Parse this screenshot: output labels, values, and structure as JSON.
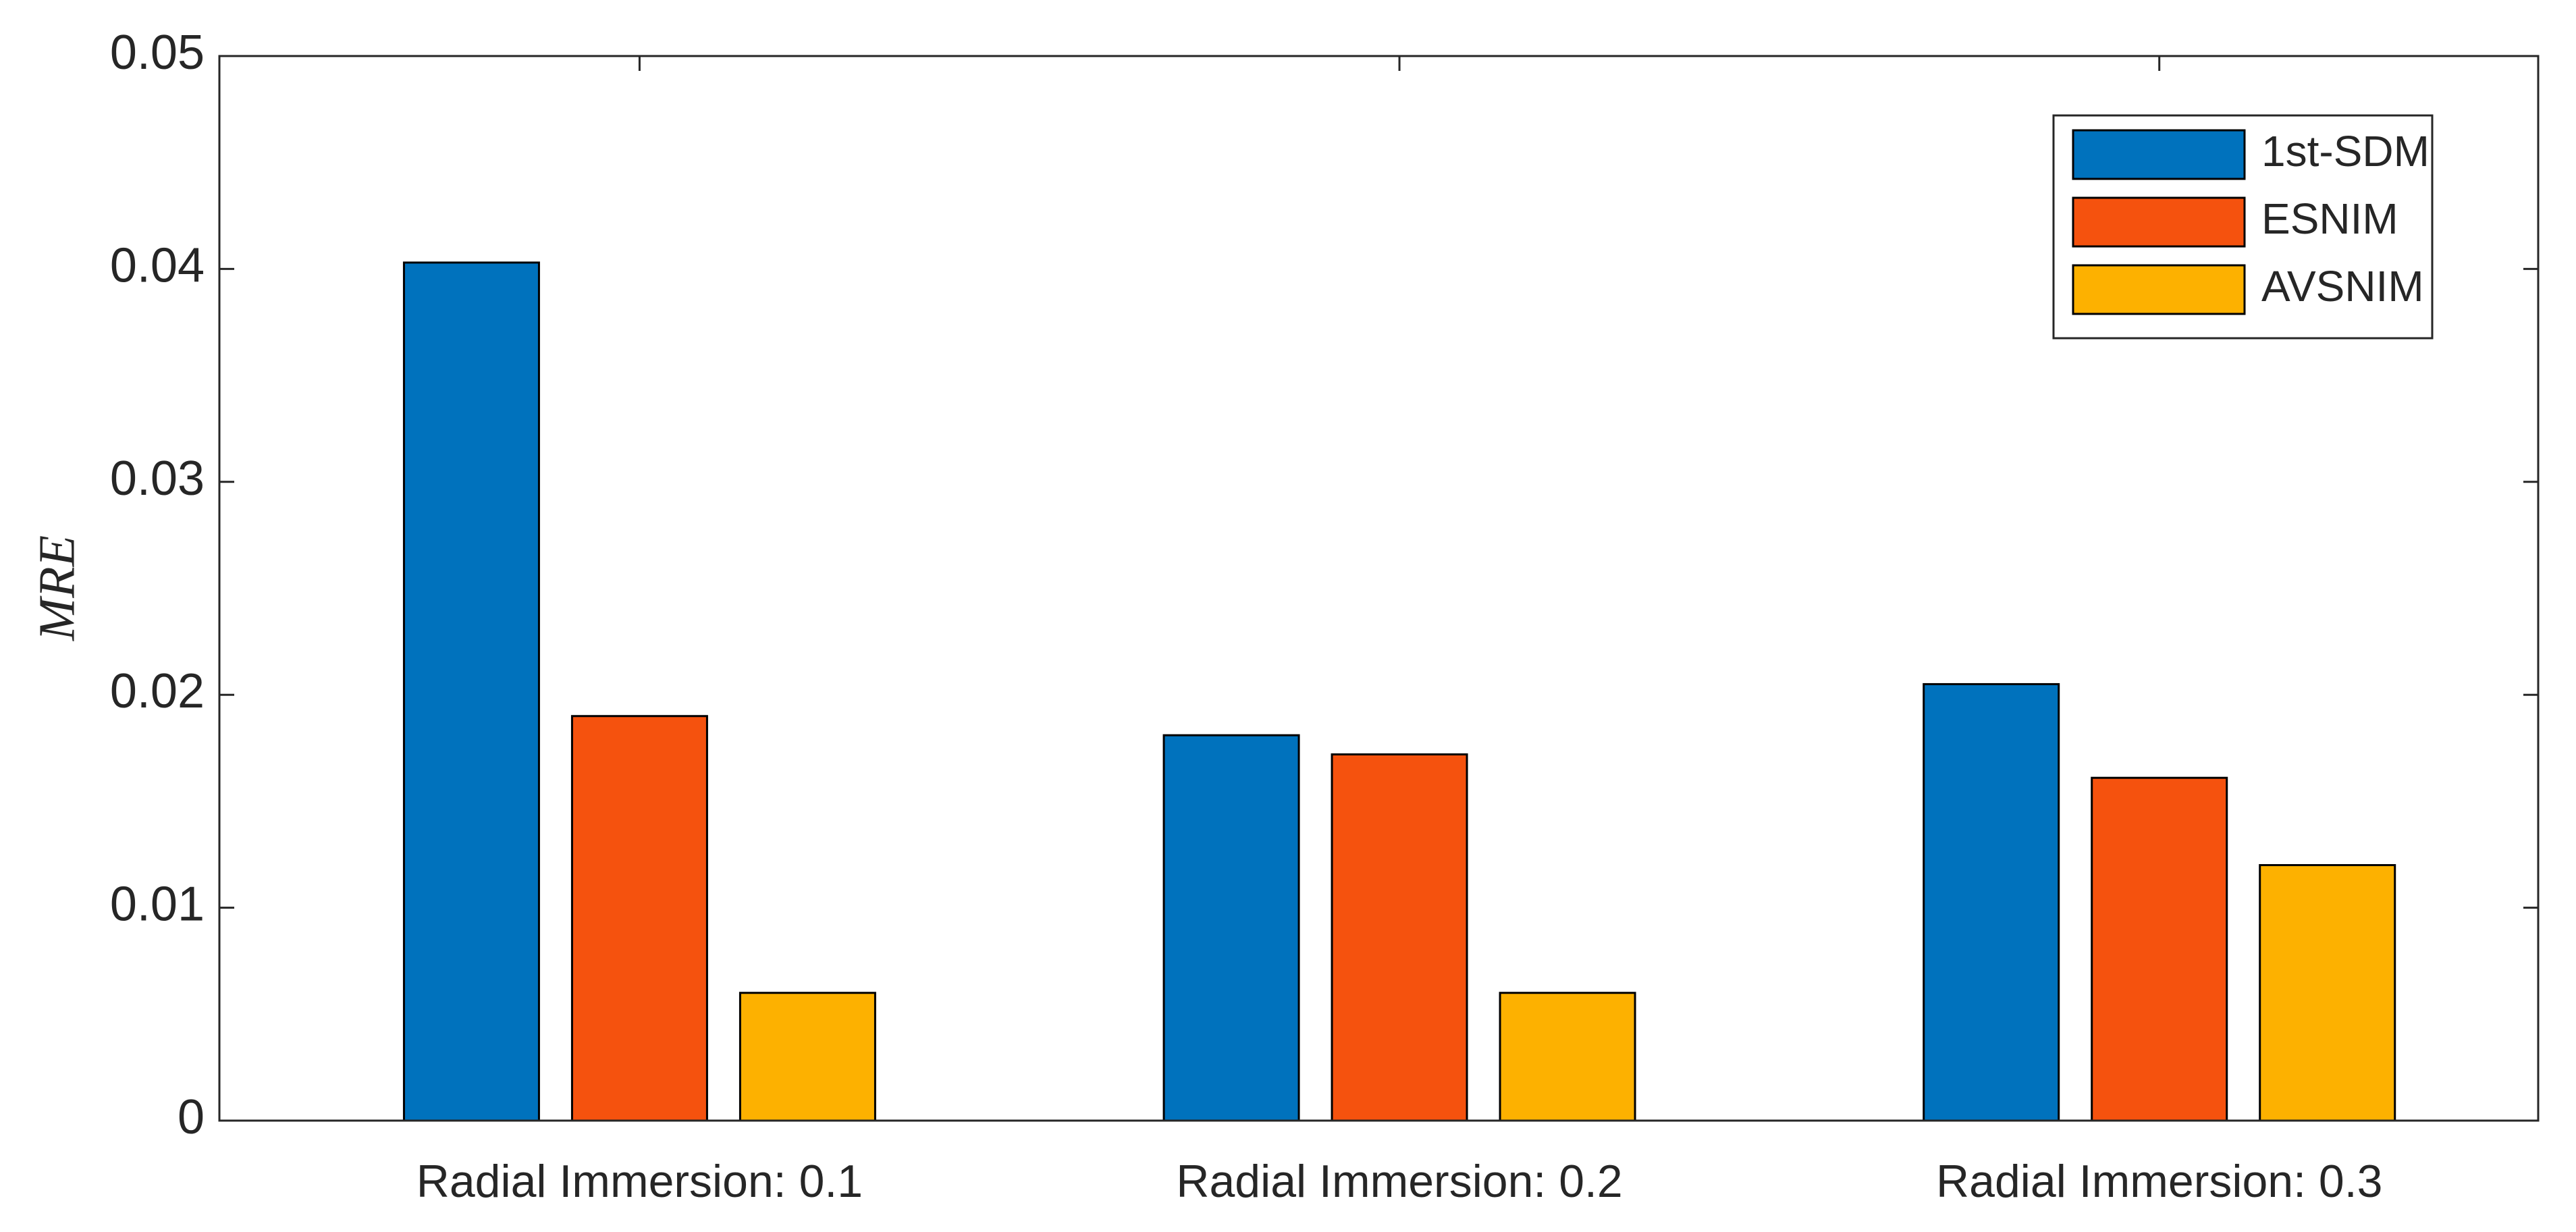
{
  "chart_data": {
    "type": "bar",
    "ylabel": "MRE",
    "categories": [
      "Radial Immersion: 0.1",
      "Radial Immersion: 0.2",
      "Radial Immersion: 0.3"
    ],
    "series": [
      {
        "name": "1st-SDM",
        "color": "#0072BD",
        "values": [
          0.0403,
          0.0181,
          0.0205
        ]
      },
      {
        "name": "ESNIM",
        "color": "#F5520E",
        "values": [
          0.019,
          0.0172,
          0.0161
        ]
      },
      {
        "name": "AVSNIM",
        "color": "#FDB100",
        "values": [
          0.006,
          0.006,
          0.012
        ]
      }
    ],
    "ylim": [
      0,
      0.05
    ],
    "yticks": [
      0,
      0.01,
      0.02,
      0.03,
      0.04,
      0.05
    ],
    "grid": false,
    "legend": "upper right"
  }
}
